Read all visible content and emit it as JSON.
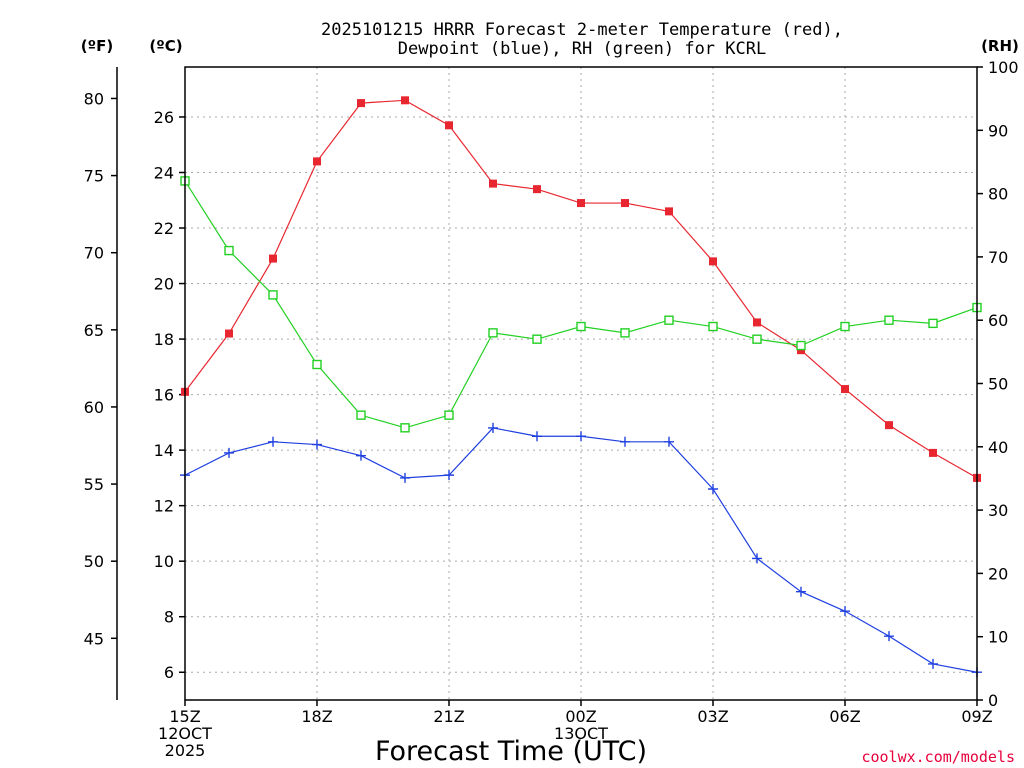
{
  "chart_data": {
    "type": "line",
    "title_line1": "2025101215 HRRR Forecast 2-meter Temperature (red),",
    "title_line2": "Dewpoint (blue), RH (green) for KCRL",
    "units": {
      "fahrenheit": "(ºF)",
      "celsius": "(ºC)",
      "rh": "(RH)"
    },
    "xlabel": "Forecast Time (UTC)",
    "credit": "coolwx.com/models",
    "x_count": 19,
    "x_ticks": [
      {
        "index": 0,
        "lines": [
          "15Z",
          "12OCT",
          "2025"
        ]
      },
      {
        "index": 3,
        "lines": [
          "18Z"
        ]
      },
      {
        "index": 6,
        "lines": [
          "21Z"
        ]
      },
      {
        "index": 9,
        "lines": [
          "00Z",
          "13OCT"
        ]
      },
      {
        "index": 12,
        "lines": [
          "03Z"
        ]
      },
      {
        "index": 15,
        "lines": [
          "06Z"
        ]
      },
      {
        "index": 18,
        "lines": [
          "09Z"
        ]
      }
    ],
    "celsius_axis": {
      "min": 5,
      "max": 27.8,
      "ticks": [
        6,
        8,
        10,
        12,
        14,
        16,
        18,
        20,
        22,
        24,
        26
      ]
    },
    "fahrenheit_ticks": [
      45,
      50,
      55,
      60,
      65,
      70,
      75,
      80
    ],
    "rh_axis": {
      "min": 0,
      "max": 100,
      "ticks": [
        0,
        10,
        20,
        30,
        40,
        50,
        60,
        70,
        80,
        90,
        100
      ]
    },
    "series": [
      {
        "name": "2-meter Temperature",
        "color": "#e8262f",
        "axis": "celsius",
        "marker": "filled-square",
        "values": [
          16.1,
          18.2,
          20.9,
          24.4,
          26.5,
          26.6,
          25.7,
          23.6,
          23.4,
          22.9,
          22.9,
          22.6,
          20.8,
          18.6,
          17.6,
          16.2,
          14.9,
          13.9,
          13.0
        ]
      },
      {
        "name": "Dewpoint",
        "color": "#2040e0",
        "axis": "celsius",
        "marker": "plus",
        "values": [
          13.1,
          13.9,
          14.3,
          14.2,
          13.8,
          13.0,
          13.1,
          14.8,
          14.5,
          14.5,
          14.3,
          14.3,
          12.6,
          10.1,
          8.9,
          8.2,
          7.3,
          6.3,
          6.0
        ]
      },
      {
        "name": "RH",
        "color": "#22d022",
        "axis": "rh",
        "marker": "open-square",
        "values": [
          82,
          71,
          64,
          53,
          45,
          43,
          45,
          58,
          57,
          59,
          58,
          60,
          59,
          57,
          56,
          59,
          60,
          59.5,
          62
        ]
      }
    ]
  }
}
